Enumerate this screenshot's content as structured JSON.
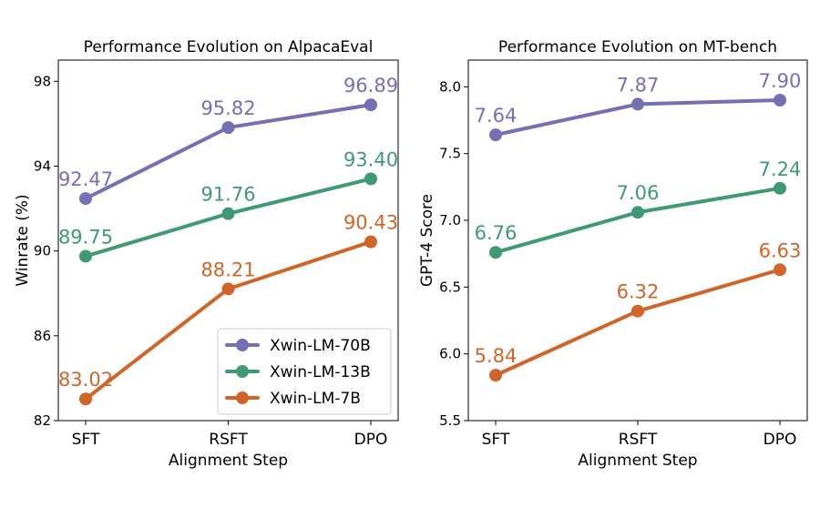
{
  "chart_data": [
    {
      "type": "line",
      "title": "Performance Evolution on AlpacaEval",
      "xlabel": "Alignment Step",
      "ylabel": "Winrate (%)",
      "categories": [
        "SFT",
        "RSFT",
        "DPO"
      ],
      "ylim": [
        82,
        99
      ],
      "yticks": [
        "82",
        "86",
        "90",
        "94",
        "98"
      ],
      "ytick_values": [
        82,
        86,
        90,
        94,
        98
      ],
      "legend": "bottom-right",
      "grid": false,
      "series": [
        {
          "name": "Xwin-LM-70B",
          "color": "#7570b3",
          "values": [
            92.47,
            95.82,
            96.89
          ],
          "labels": [
            "92.47",
            "95.82",
            "96.89"
          ]
        },
        {
          "name": "Xwin-LM-13B",
          "color": "#3f9a73",
          "values": [
            89.75,
            91.76,
            93.4
          ],
          "labels": [
            "89.75",
            "91.76",
            "93.40"
          ]
        },
        {
          "name": "Xwin-LM-7B",
          "color": "#d0652a",
          "values": [
            83.02,
            88.21,
            90.43
          ],
          "labels": [
            "83.02",
            "88.21",
            "90.43"
          ]
        }
      ]
    },
    {
      "type": "line",
      "title": "Performance Evolution on MT-bench",
      "xlabel": "Alignment Step",
      "ylabel": "GPT-4 Score",
      "categories": [
        "SFT",
        "RSFT",
        "DPO"
      ],
      "ylim": [
        5.5,
        8.2
      ],
      "yticks": [
        "5.5",
        "6.0",
        "6.5",
        "7.0",
        "7.5",
        "8.0"
      ],
      "ytick_values": [
        5.5,
        6.0,
        6.5,
        7.0,
        7.5,
        8.0
      ],
      "grid": false,
      "series": [
        {
          "name": "Xwin-LM-70B",
          "color": "#7570b3",
          "values": [
            7.64,
            7.87,
            7.9
          ],
          "labels": [
            "7.64",
            "7.87",
            "7.90"
          ]
        },
        {
          "name": "Xwin-LM-13B",
          "color": "#3f9a73",
          "values": [
            6.76,
            7.06,
            7.24
          ],
          "labels": [
            "6.76",
            "7.06",
            "7.24"
          ]
        },
        {
          "name": "Xwin-LM-7B",
          "color": "#d0652a",
          "values": [
            5.84,
            6.32,
            6.63
          ],
          "labels": [
            "5.84",
            "6.32",
            "6.63"
          ]
        }
      ]
    }
  ]
}
